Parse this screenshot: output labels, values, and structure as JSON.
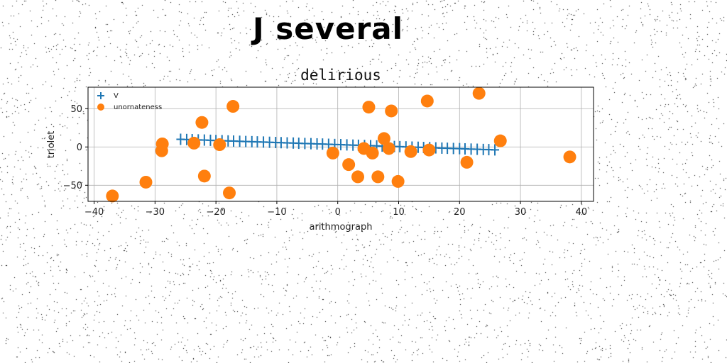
{
  "page": {
    "title": "J several"
  },
  "chart_data": {
    "type": "scatter",
    "title": "delirious",
    "xlabel": "arithmograph",
    "ylabel": "triolet",
    "xlim": [
      -41,
      42
    ],
    "ylim": [
      -71,
      78
    ],
    "xticks": [
      -40,
      -30,
      -20,
      -10,
      0,
      10,
      20,
      30,
      40
    ],
    "xtick_labels": [
      "−40",
      "−30",
      "−20",
      "−10",
      "0",
      "10",
      "20",
      "30",
      "40"
    ],
    "yticks": [
      -50,
      0,
      50
    ],
    "ytick_labels": [
      "−50",
      "0",
      "50"
    ],
    "grid": true,
    "legend": "top-left",
    "series": [
      {
        "name": "V",
        "marker": "plus",
        "color": "#1f77b4",
        "x": [
          -25.8,
          -24.8,
          -23.9,
          -22.9,
          -21.9,
          -20.9,
          -20.0,
          -19.0,
          -18.0,
          -17.1,
          -16.1,
          -15.1,
          -14.1,
          -13.2,
          -12.2,
          -11.2,
          -10.2,
          -9.3,
          -8.3,
          -7.3,
          -6.4,
          -5.4,
          -4.4,
          -3.4,
          -2.5,
          -1.5,
          -0.5,
          0.5,
          1.5,
          2.5,
          3.4,
          4.4,
          5.4,
          6.4,
          7.3,
          8.3,
          9.3,
          10.2,
          11.2,
          12.2,
          13.2,
          14.1,
          15.1,
          16.1,
          17.1,
          18.0,
          19.0,
          20.0,
          20.9,
          21.9,
          22.9,
          23.9,
          24.8,
          25.8
        ],
        "y": [
          10.0,
          9.7,
          9.5,
          9.2,
          9.0,
          8.7,
          8.4,
          8.2,
          7.9,
          7.7,
          7.4,
          7.1,
          6.9,
          6.6,
          6.4,
          6.1,
          5.8,
          5.6,
          5.3,
          5.1,
          4.8,
          4.5,
          4.3,
          4.0,
          3.8,
          3.5,
          3.2,
          3.0,
          2.7,
          2.4,
          2.2,
          1.9,
          1.7,
          1.4,
          1.1,
          0.9,
          0.6,
          0.4,
          0.1,
          -0.2,
          -0.4,
          -0.7,
          -0.9,
          -1.2,
          -1.5,
          -1.7,
          -2.0,
          -2.2,
          -2.5,
          -2.8,
          -3.0,
          -3.3,
          -3.5,
          -3.8
        ]
      },
      {
        "name": "unornateness",
        "marker": "circle",
        "color": "#ff7f0e",
        "x": [
          -37.0,
          -31.5,
          -28.9,
          -28.8,
          -23.6,
          -22.3,
          -21.9,
          -19.4,
          -17.8,
          -17.2,
          -0.8,
          1.8,
          3.3,
          4.3,
          5.1,
          5.7,
          6.6,
          7.6,
          8.4,
          8.8,
          9.9,
          12.0,
          14.7,
          15.0,
          21.2,
          23.2,
          26.7,
          38.1
        ],
        "y": [
          -64.0,
          -46.0,
          -5.0,
          4.0,
          5.0,
          32.0,
          -38.0,
          3.0,
          -60.0,
          53.0,
          -8.0,
          -23.0,
          -39.0,
          -2.0,
          52.0,
          -8.0,
          -39.0,
          11.0,
          -2.0,
          47.0,
          -45.0,
          -6.0,
          60.0,
          -4.0,
          -20.0,
          70.0,
          8.0,
          -13.0
        ]
      }
    ]
  }
}
